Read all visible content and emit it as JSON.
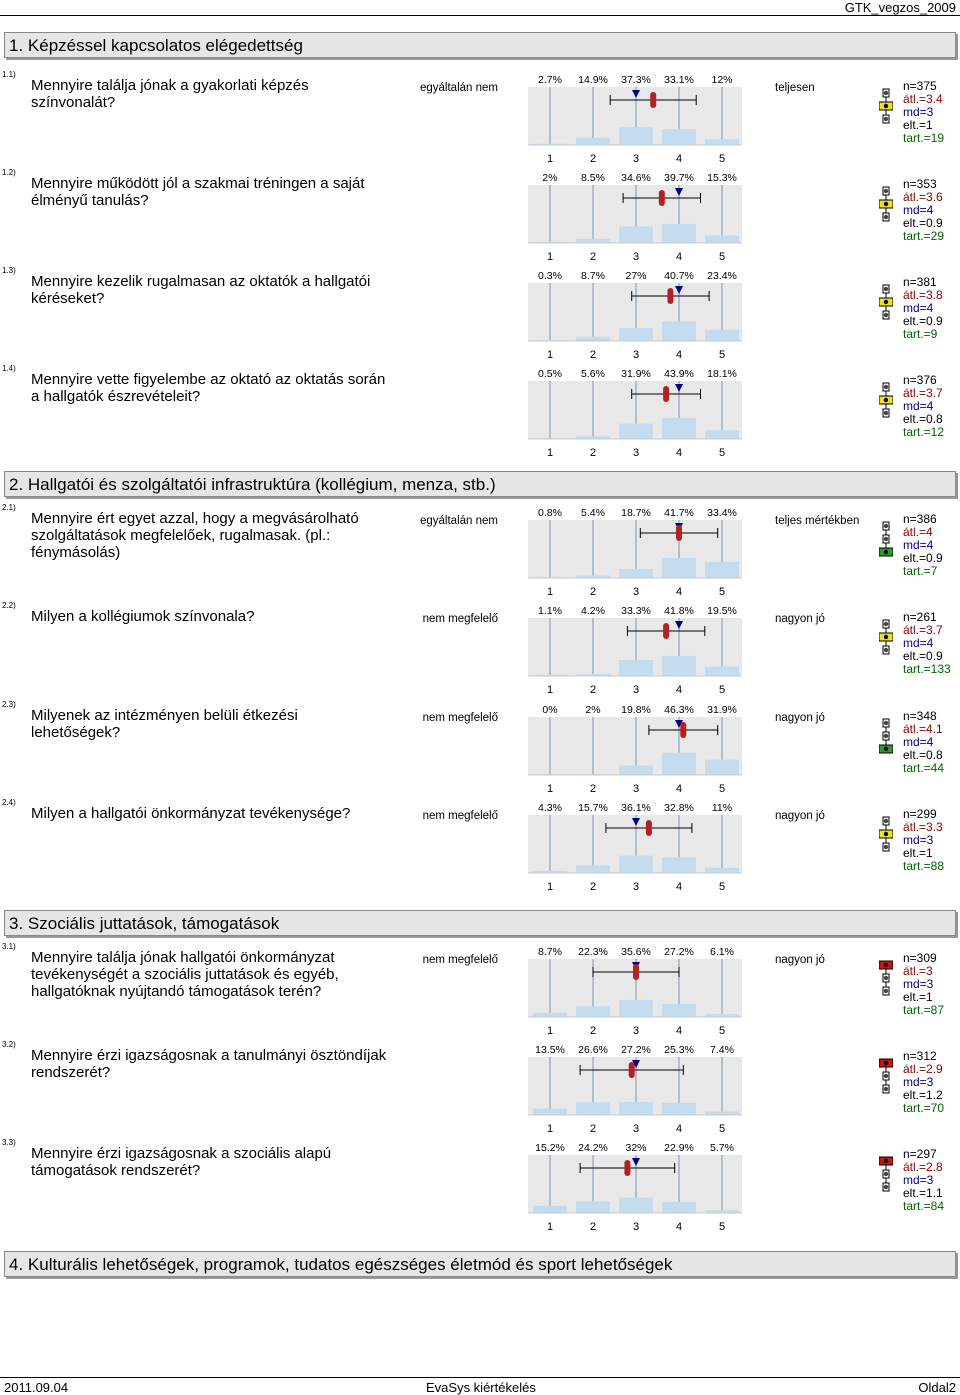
{
  "header": {
    "doc_id": "GTK_vegzos_2009"
  },
  "sections": [
    {
      "title": "1. Képzéssel kapcsolatos elégedettség"
    },
    {
      "title": "2. Hallgatói és szolgáltatói infrastruktúra (kollégium, menza, stb.)"
    },
    {
      "title": "3. Szociális juttatások, támogatások"
    },
    {
      "title": "4. Kulturális lehetőségek, programok, tudatos egészséges életmód és sport lehetőségek"
    }
  ],
  "scale_ticks": [
    "1",
    "2",
    "3",
    "4",
    "5"
  ],
  "colors": {
    "bar": "#c3dcef",
    "median": "#00008b",
    "mean": "#b22222",
    "green": "#2e9a2e",
    "yellow": "#f0e020",
    "red": "#d01010"
  },
  "questions": [
    {
      "num": "1.1)",
      "text": "Mennyire találja jónak a gyakorlati képzés színvonalát?",
      "left": "egyáltalán nem",
      "right": "teljesen",
      "pct_labels": [
        "2.7%",
        "14.9%",
        "37.3%",
        "33.1%",
        "12%"
      ],
      "pct": [
        2.7,
        14.9,
        37.3,
        33.1,
        12
      ],
      "mean": 3.4,
      "md": 3,
      "sd": 1,
      "n": "n=375",
      "avg": "átl.=3.4",
      "mdl": "md=3",
      "dev": "elt.=1",
      "tart": "tart.=19",
      "light": "yellow"
    },
    {
      "num": "1.2)",
      "text": "Mennyire működött jól a szakmai tréningen a saját élményű tanulás?",
      "left": "",
      "right": "",
      "pct_labels": [
        "2%",
        "8.5%",
        "34.6%",
        "39.7%",
        "15.3%"
      ],
      "pct": [
        2,
        8.5,
        34.6,
        39.7,
        15.3
      ],
      "mean": 3.6,
      "md": 4,
      "sd": 0.9,
      "n": "n=353",
      "avg": "átl.=3.6",
      "mdl": "md=4",
      "dev": "elt.=0.9",
      "tart": "tart.=29",
      "light": "yellow"
    },
    {
      "num": "1.3)",
      "text": "Mennyire kezelik rugalmasan az oktatók a hallgatói kéréseket?",
      "left": "",
      "right": "",
      "pct_labels": [
        "0.3%",
        "8.7%",
        "27%",
        "40.7%",
        "23.4%"
      ],
      "pct": [
        0.3,
        8.7,
        27,
        40.7,
        23.4
      ],
      "mean": 3.8,
      "md": 4,
      "sd": 0.9,
      "n": "n=381",
      "avg": "átl.=3.8",
      "mdl": "md=4",
      "dev": "elt.=0.9",
      "tart": "tart.=9",
      "light": "yellow"
    },
    {
      "num": "1.4)",
      "text": "Mennyire vette figyelembe az oktató az oktatás során a hallgatók észrevételeit?",
      "left": "",
      "right": "",
      "pct_labels": [
        "0.5%",
        "5.6%",
        "31.9%",
        "43.9%",
        "18.1%"
      ],
      "pct": [
        0.5,
        5.6,
        31.9,
        43.9,
        18.1
      ],
      "mean": 3.7,
      "md": 4,
      "sd": 0.8,
      "n": "n=376",
      "avg": "átl.=3.7",
      "mdl": "md=4",
      "dev": "elt.=0.8",
      "tart": "tart.=12",
      "light": "yellow"
    },
    {
      "num": "2.1)",
      "text": "Mennyire ért egyet azzal, hogy a megvásárolható szolgáltatások megfelelőek, rugalmasak. (pl.: fénymásolás)",
      "left": "egyáltalán nem",
      "right": "teljes mértékben",
      "pct_labels": [
        "0.8%",
        "5.4%",
        "18.7%",
        "41.7%",
        "33.4%"
      ],
      "pct": [
        0.8,
        5.4,
        18.7,
        41.7,
        33.4
      ],
      "mean": 4,
      "md": 4,
      "sd": 0.9,
      "n": "n=386",
      "avg": "átl.=4",
      "mdl": "md=4",
      "dev": "elt.=0.9",
      "tart": "tart.=7",
      "light": "green"
    },
    {
      "num": "2.2)",
      "text": "Milyen a kollégiumok színvonala?",
      "left": "nem megfelelő",
      "right": "nagyon jó",
      "pct_labels": [
        "1.1%",
        "4.2%",
        "33.3%",
        "41.8%",
        "19.5%"
      ],
      "pct": [
        1.1,
        4.2,
        33.3,
        41.8,
        19.5
      ],
      "mean": 3.7,
      "md": 4,
      "sd": 0.9,
      "n": "n=261",
      "avg": "átl.=3.7",
      "mdl": "md=4",
      "dev": "elt.=0.9",
      "tart": "tart.=133",
      "light": "yellow"
    },
    {
      "num": "2.3)",
      "text": "Milyenek az intézményen belüli étkezési lehetőségek?",
      "left": "nem megfelelő",
      "right": "nagyon jó",
      "pct_labels": [
        "0%",
        "2%",
        "19.8%",
        "46.3%",
        "31.9%"
      ],
      "pct": [
        0,
        2,
        19.8,
        46.3,
        31.9
      ],
      "mean": 4.1,
      "md": 4,
      "sd": 0.8,
      "n": "n=348",
      "avg": "átl.=4.1",
      "mdl": "md=4",
      "dev": "elt.=0.8",
      "tart": "tart.=44",
      "light": "green"
    },
    {
      "num": "2.4)",
      "text": "Milyen a hallgatói önkormányzat tevékenysége?",
      "left": "nem megfelelő",
      "right": "nagyon jó",
      "pct_labels": [
        "4.3%",
        "15.7%",
        "36.1%",
        "32.8%",
        "11%"
      ],
      "pct": [
        4.3,
        15.7,
        36.1,
        32.8,
        11
      ],
      "mean": 3.3,
      "md": 3,
      "sd": 1,
      "n": "n=299",
      "avg": "átl.=3.3",
      "mdl": "md=3",
      "dev": "elt.=1",
      "tart": "tart.=88",
      "light": "yellow"
    },
    {
      "num": "3.1)",
      "text": "Mennyire találja jónak hallgatói önkormányzat tevékenységét a szociális juttatások és egyéb, hallgatóknak nyújtandó támogatások terén?",
      "left": "nem megfelelő",
      "right": "nagyon jó",
      "pct_labels": [
        "8.7%",
        "22.3%",
        "35.6%",
        "27.2%",
        "6.1%"
      ],
      "pct": [
        8.7,
        22.3,
        35.6,
        27.2,
        6.1
      ],
      "mean": 3,
      "md": 3,
      "sd": 1,
      "n": "n=309",
      "avg": "átl.=3",
      "mdl": "md=3",
      "dev": "elt.=1",
      "tart": "tart.=87",
      "light": "red"
    },
    {
      "num": "3.2)",
      "text": "Mennyire érzi igazságosnak a tanulmányi ösztöndíjak rendszerét?",
      "left": "",
      "right": "",
      "pct_labels": [
        "13.5%",
        "26.6%",
        "27.2%",
        "25.3%",
        "7.4%"
      ],
      "pct": [
        13.5,
        26.6,
        27.2,
        25.3,
        7.4
      ],
      "mean": 2.9,
      "md": 3,
      "sd": 1.2,
      "n": "n=312",
      "avg": "átl.=2.9",
      "mdl": "md=3",
      "dev": "elt.=1.2",
      "tart": "tart.=70",
      "light": "red"
    },
    {
      "num": "3.3)",
      "text": "Mennyire érzi igazságosnak a szociális alapú támogatások rendszerét?",
      "left": "",
      "right": "",
      "pct_labels": [
        "15.2%",
        "24.2%",
        "32%",
        "22.9%",
        "5.7%"
      ],
      "pct": [
        15.2,
        24.2,
        32,
        22.9,
        5.7
      ],
      "mean": 2.8,
      "md": 3,
      "sd": 1.1,
      "n": "n=297",
      "avg": "átl.=2.8",
      "mdl": "md=3",
      "dev": "elt.=1.1",
      "tart": "tart.=84",
      "light": "red"
    }
  ],
  "footer": {
    "date": "2011.09.04",
    "center": "EvaSys kiértékelés",
    "page": "Oldal2"
  }
}
